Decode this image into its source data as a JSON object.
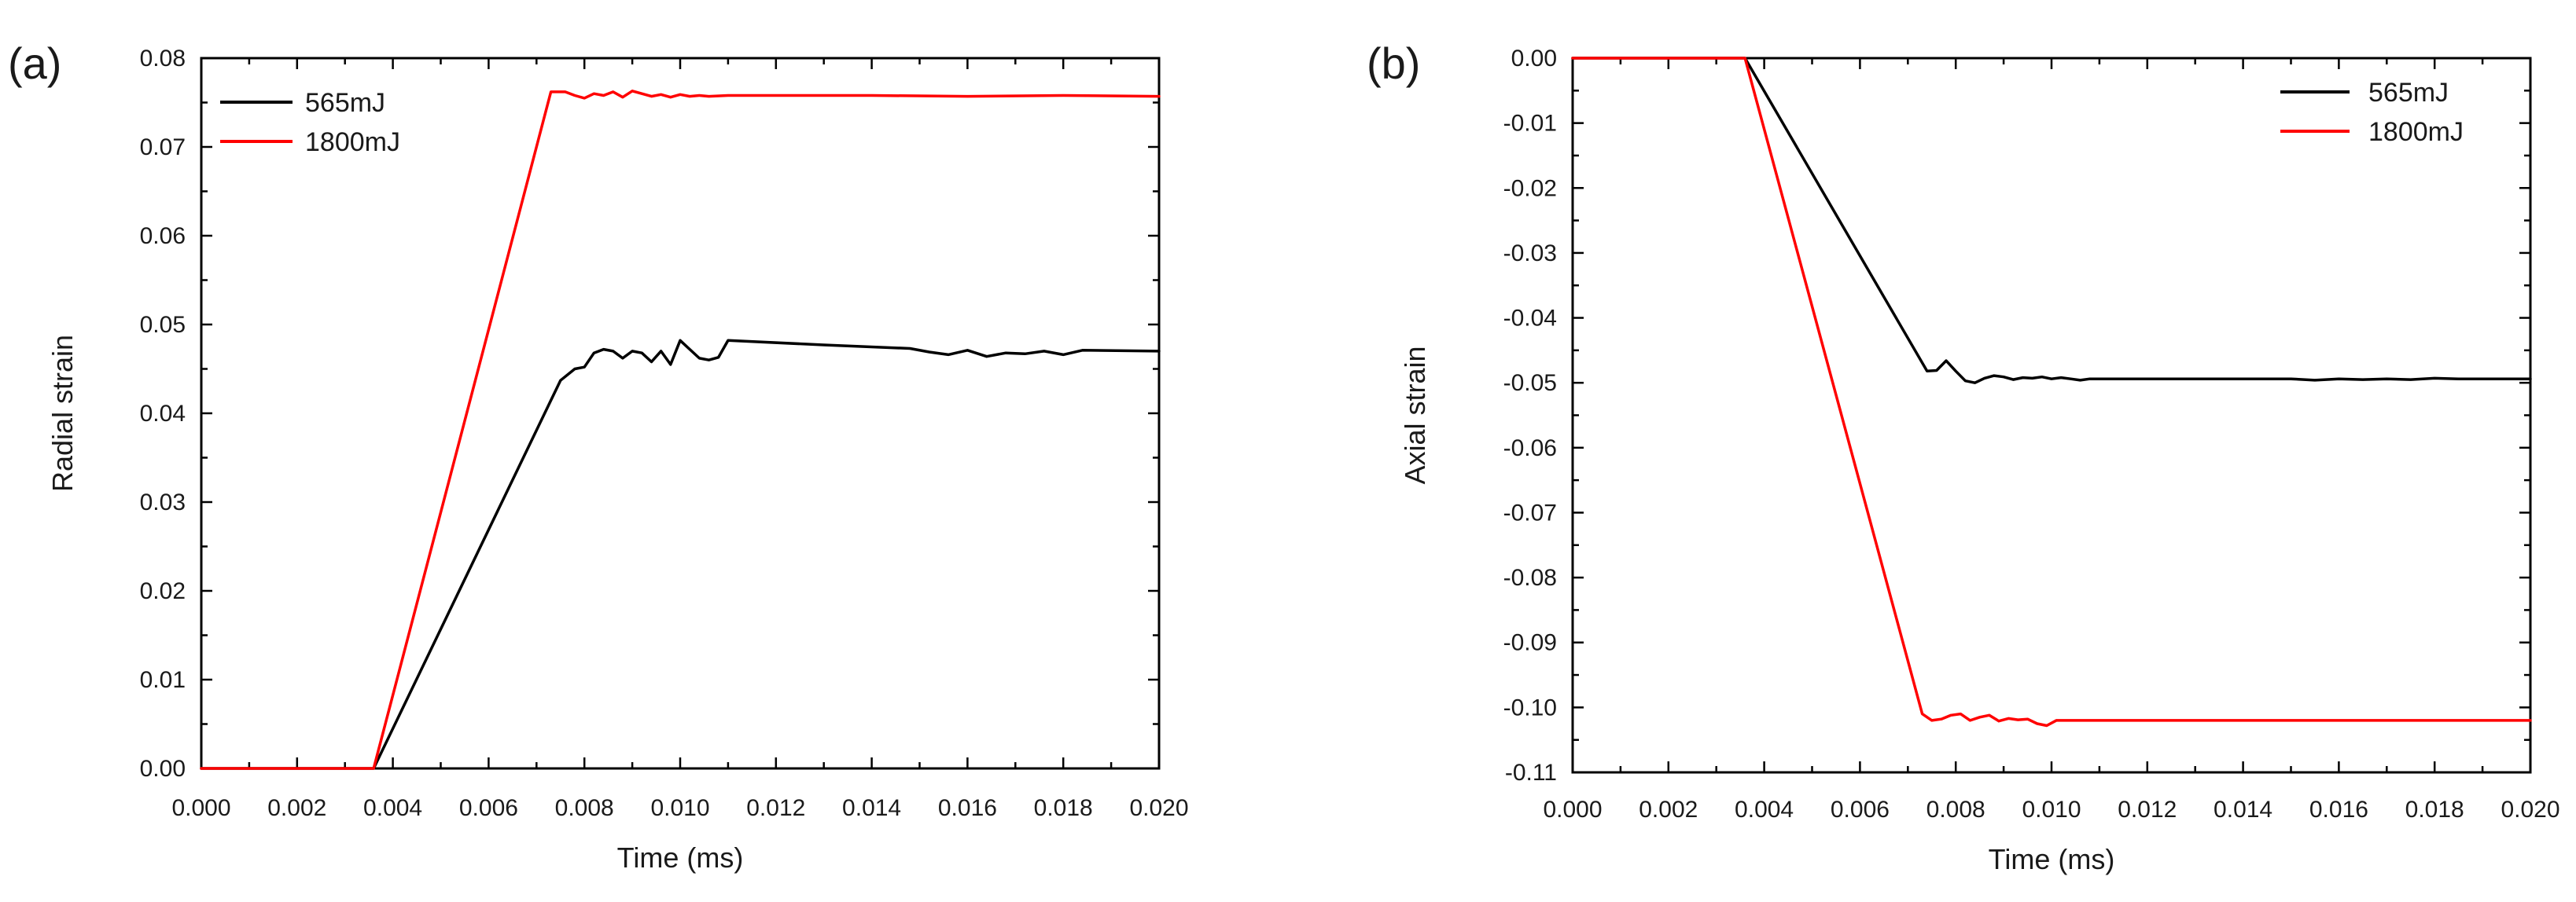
{
  "chart_data": [
    {
      "type": "line",
      "panel_label": "(a)",
      "xlabel": "Time (ms)",
      "ylabel": "Radial strain",
      "xlim": [
        0.0,
        0.02
      ],
      "ylim": [
        0.0,
        0.08
      ],
      "xticks": [
        "0.000",
        "0.002",
        "0.004",
        "0.006",
        "0.008",
        "0.010",
        "0.012",
        "0.014",
        "0.016",
        "0.018",
        "0.020"
      ],
      "yticks": [
        "0.00",
        "0.01",
        "0.02",
        "0.03",
        "0.04",
        "0.05",
        "0.06",
        "0.07",
        "0.08"
      ],
      "legend_position": "top-left",
      "grid": false,
      "series": [
        {
          "name": "565mJ",
          "color": "#000000",
          "x": [
            0.0,
            0.0036,
            0.0075,
            0.0078,
            0.008,
            0.0082,
            0.0084,
            0.0086,
            0.0088,
            0.009,
            0.0092,
            0.0094,
            0.0096,
            0.0098,
            0.01,
            0.0102,
            0.0104,
            0.0106,
            0.0108,
            0.011,
            0.013,
            0.0148,
            0.0152,
            0.0156,
            0.016,
            0.0164,
            0.0168,
            0.0172,
            0.0176,
            0.018,
            0.0184,
            0.02
          ],
          "y": [
            0.0,
            0.0,
            0.0437,
            0.045,
            0.0452,
            0.0468,
            0.0472,
            0.047,
            0.0462,
            0.047,
            0.0468,
            0.0458,
            0.047,
            0.0455,
            0.0482,
            0.0472,
            0.0462,
            0.046,
            0.0463,
            0.0482,
            0.0477,
            0.0473,
            0.0469,
            0.0466,
            0.0471,
            0.0464,
            0.0468,
            0.0467,
            0.047,
            0.0466,
            0.0471,
            0.047
          ]
        },
        {
          "name": "1800mJ",
          "color": "#ff0000",
          "x": [
            0.0,
            0.0036,
            0.0073,
            0.0076,
            0.0078,
            0.008,
            0.0082,
            0.0084,
            0.0086,
            0.0088,
            0.009,
            0.0092,
            0.0094,
            0.0096,
            0.0098,
            0.01,
            0.0102,
            0.0104,
            0.0106,
            0.011,
            0.014,
            0.016,
            0.018,
            0.02
          ],
          "y": [
            0.0,
            0.0,
            0.0762,
            0.0762,
            0.0758,
            0.0755,
            0.076,
            0.0758,
            0.0762,
            0.0756,
            0.0763,
            0.076,
            0.0757,
            0.0759,
            0.0756,
            0.0759,
            0.0757,
            0.0758,
            0.0757,
            0.0758,
            0.0758,
            0.0757,
            0.0758,
            0.0757
          ]
        }
      ]
    },
    {
      "type": "line",
      "panel_label": "(b)",
      "xlabel": "Time (ms)",
      "ylabel": "Axial strain",
      "xlim": [
        0.0,
        0.02
      ],
      "ylim": [
        -0.11,
        0.0
      ],
      "xticks": [
        "0.000",
        "0.002",
        "0.004",
        "0.006",
        "0.008",
        "0.010",
        "0.012",
        "0.014",
        "0.016",
        "0.018",
        "0.020"
      ],
      "yticks": [
        "0.00",
        "-0.01",
        "-0.02",
        "-0.03",
        "-0.04",
        "-0.05",
        "-0.06",
        "-0.07",
        "-0.08",
        "-0.09",
        "-0.10",
        "-0.11"
      ],
      "legend_position": "top-right",
      "grid": false,
      "series": [
        {
          "name": "565mJ",
          "color": "#000000",
          "x": [
            0.0,
            0.0036,
            0.0074,
            0.0076,
            0.0078,
            0.008,
            0.0082,
            0.0084,
            0.0086,
            0.0088,
            0.009,
            0.0092,
            0.0094,
            0.0096,
            0.0098,
            0.01,
            0.0102,
            0.0104,
            0.0106,
            0.0108,
            0.011,
            0.015,
            0.0155,
            0.016,
            0.0165,
            0.017,
            0.0175,
            0.018,
            0.0185,
            0.02
          ],
          "y": [
            0.0,
            0.0,
            -0.0482,
            -0.0481,
            -0.0466,
            -0.0482,
            -0.0497,
            -0.05,
            -0.0493,
            -0.0489,
            -0.0491,
            -0.0495,
            -0.0492,
            -0.0493,
            -0.0491,
            -0.0494,
            -0.0492,
            -0.0494,
            -0.0496,
            -0.0494,
            -0.0494,
            -0.0494,
            -0.0496,
            -0.0494,
            -0.0495,
            -0.0494,
            -0.0495,
            -0.0493,
            -0.0494,
            -0.0494
          ]
        },
        {
          "name": "1800mJ",
          "color": "#ff0000",
          "x": [
            0.0,
            0.0036,
            0.0073,
            0.0075,
            0.0077,
            0.0079,
            0.0081,
            0.0083,
            0.0085,
            0.0087,
            0.0089,
            0.0091,
            0.0093,
            0.0095,
            0.0097,
            0.0099,
            0.0101,
            0.0103,
            0.011,
            0.015,
            0.02
          ],
          "y": [
            0.0,
            0.0,
            -0.101,
            -0.102,
            -0.1018,
            -0.1012,
            -0.101,
            -0.102,
            -0.1015,
            -0.1012,
            -0.1021,
            -0.1017,
            -0.1019,
            -0.1018,
            -0.1025,
            -0.1028,
            -0.102,
            -0.102,
            -0.102,
            -0.102,
            -0.102
          ]
        }
      ]
    }
  ]
}
